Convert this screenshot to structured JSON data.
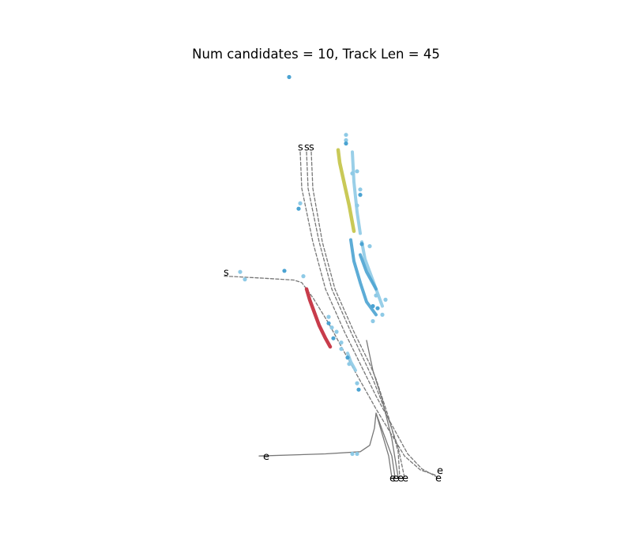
{
  "chart_data": {
    "type": "scatter",
    "title": "Num candidates = 10, Track Len = 45",
    "xlabel": "",
    "ylabel": "",
    "axes_visible": false,
    "grid": false,
    "legend": "none",
    "colors": {
      "candidate_path": "#777777",
      "observations": "#8ecae6",
      "observations_dense": "#4ba3d2",
      "highlight_yellow": "#c9c957",
      "highlight_red": "#c83c4b",
      "label": "#000000"
    },
    "start_label": "s",
    "end_label": "e",
    "candidate_paths": [
      {
        "style": "dashed",
        "points": [
          [
            -2.0,
            9.4
          ],
          [
            -1.7,
            9.38
          ],
          [
            -0.7,
            9.3
          ],
          [
            0.2,
            9.22
          ],
          [
            0.45,
            9.1
          ],
          [
            0.8,
            8.4
          ],
          [
            1.3,
            7.2
          ],
          [
            2.0,
            5.3
          ],
          [
            2.8,
            3.2
          ],
          [
            3.7,
            1.0
          ],
          [
            4.2,
            0.35
          ],
          [
            4.7,
            0.1
          ]
        ]
      },
      {
        "style": "dashed",
        "points": [
          [
            0.4,
            15.2
          ],
          [
            0.45,
            13.5
          ],
          [
            0.8,
            11.0
          ],
          [
            1.2,
            8.8
          ],
          [
            1.8,
            6.8
          ],
          [
            2.8,
            3.8
          ],
          [
            3.8,
            1.1
          ],
          [
            4.25,
            0.4
          ],
          [
            4.75,
            0.0
          ]
        ]
      },
      {
        "style": "dashed",
        "points": [
          [
            0.6,
            15.2
          ],
          [
            0.65,
            13.5
          ],
          [
            1.0,
            11.0
          ],
          [
            1.4,
            8.8
          ],
          [
            2.0,
            6.8
          ],
          [
            2.7,
            4.6
          ],
          [
            3.2,
            2.7
          ],
          [
            3.5,
            1.4
          ],
          [
            3.7,
            0.0
          ]
        ]
      },
      {
        "style": "dashed",
        "points": [
          [
            0.75,
            15.2
          ],
          [
            0.8,
            13.5
          ],
          [
            1.1,
            11.0
          ],
          [
            1.5,
            8.8
          ],
          [
            2.1,
            6.8
          ],
          [
            2.6,
            5.3
          ],
          [
            2.8,
            4.6
          ],
          [
            3.2,
            2.8
          ],
          [
            3.5,
            1.2
          ],
          [
            3.55,
            0.0
          ]
        ]
      },
      {
        "style": "solid",
        "points": [
          [
            -0.7,
            1.0
          ],
          [
            -0.9,
            1.0
          ],
          [
            1.2,
            1.1
          ],
          [
            2.3,
            1.2
          ],
          [
            2.6,
            1.5
          ],
          [
            2.75,
            2.3
          ],
          [
            2.8,
            3.0
          ],
          [
            3.0,
            2.2
          ],
          [
            3.1,
            1.8
          ],
          [
            3.3,
            1.0
          ],
          [
            3.4,
            0.0
          ]
        ]
      },
      {
        "style": "solid",
        "points": [
          [
            2.5,
            6.4
          ],
          [
            2.7,
            5.0
          ],
          [
            3.0,
            3.6
          ],
          [
            3.3,
            1.8
          ],
          [
            3.5,
            0.0
          ]
        ]
      },
      {
        "style": "solid",
        "points": [
          [
            2.8,
            3.0
          ],
          [
            3.2,
            1.0
          ],
          [
            3.3,
            0.0
          ]
        ]
      }
    ],
    "start_label_points": [
      [
        -1.95,
        9.45
      ],
      [
        0.4,
        15.3
      ],
      [
        0.6,
        15.3
      ],
      [
        0.75,
        15.3
      ]
    ],
    "end_label_points": [
      [
        -0.7,
        1.0
      ],
      [
        3.3,
        0.0
      ],
      [
        3.4,
        0.0
      ],
      [
        3.55,
        0.0
      ],
      [
        3.7,
        0.0
      ],
      [
        4.75,
        0.0
      ],
      [
        4.8,
        0.35
      ]
    ],
    "observation_points": [
      [
        0.05,
        18.7
      ],
      [
        -1.5,
        9.6
      ],
      [
        -1.35,
        9.25
      ],
      [
        -0.1,
        9.65
      ],
      [
        0.5,
        9.4
      ],
      [
        0.4,
        12.8
      ],
      [
        0.35,
        12.55
      ],
      [
        1.85,
        16.0
      ],
      [
        1.85,
        15.75
      ],
      [
        1.85,
        15.6
      ],
      [
        2.2,
        14.3
      ],
      [
        2.05,
        14.2
      ],
      [
        2.3,
        13.2
      ],
      [
        2.3,
        13.45
      ],
      [
        2.2,
        12.7
      ],
      [
        2.35,
        10.9
      ],
      [
        2.6,
        10.8
      ],
      [
        2.8,
        8.5
      ],
      [
        2.7,
        8.0
      ],
      [
        3.1,
        8.3
      ],
      [
        3.0,
        7.6
      ],
      [
        2.85,
        7.9
      ],
      [
        2.7,
        7.3
      ],
      [
        1.3,
        7.5
      ],
      [
        1.3,
        7.2
      ],
      [
        1.4,
        7.0
      ],
      [
        1.55,
        6.8
      ],
      [
        1.45,
        6.5
      ],
      [
        1.7,
        6.3
      ],
      [
        1.7,
        6.0
      ],
      [
        1.9,
        5.6
      ],
      [
        1.95,
        5.3
      ],
      [
        2.2,
        4.4
      ],
      [
        2.25,
        4.1
      ],
      [
        2.05,
        1.1
      ],
      [
        2.2,
        1.1
      ]
    ],
    "observation_tracks": [
      [
        [
          2.05,
          15.2
        ],
        [
          2.1,
          13.8
        ],
        [
          2.2,
          12.4
        ],
        [
          2.3,
          11.4
        ]
      ],
      [
        [
          2.0,
          11.1
        ],
        [
          2.1,
          10.1
        ],
        [
          2.3,
          9.1
        ],
        [
          2.5,
          8.2
        ],
        [
          2.8,
          7.6
        ]
      ],
      [
        [
          2.35,
          11.0
        ],
        [
          2.45,
          10.2
        ],
        [
          2.7,
          9.2
        ],
        [
          3.0,
          8.0
        ]
      ],
      [
        [
          2.3,
          10.4
        ],
        [
          2.5,
          9.6
        ],
        [
          2.8,
          8.8
        ]
      ],
      [
        [
          1.9,
          5.8
        ],
        [
          2.0,
          5.4
        ],
        [
          2.15,
          5.0
        ]
      ]
    ],
    "highlight_tracks": [
      {
        "color": "yellow",
        "points": [
          [
            1.6,
            15.3
          ],
          [
            1.65,
            14.7
          ],
          [
            1.8,
            13.7
          ],
          [
            1.95,
            12.7
          ],
          [
            2.05,
            11.9
          ],
          [
            2.1,
            11.5
          ]
        ]
      },
      {
        "color": "red",
        "points": [
          [
            0.6,
            8.8
          ],
          [
            0.7,
            8.3
          ],
          [
            0.85,
            7.7
          ],
          [
            1.0,
            7.1
          ],
          [
            1.2,
            6.5
          ],
          [
            1.35,
            6.1
          ]
        ]
      }
    ],
    "xlim": [
      -2.6,
      5.6
    ],
    "ylim": [
      -0.8,
      19.2
    ]
  }
}
